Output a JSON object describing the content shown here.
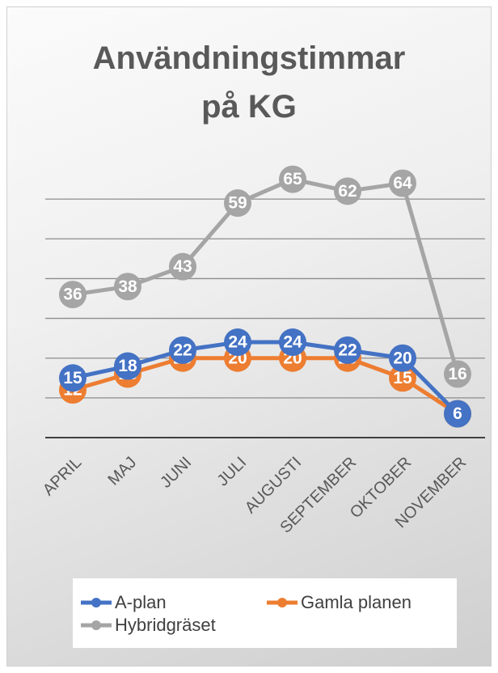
{
  "chart_data": {
    "type": "line",
    "title": "Användningstimmar på KG",
    "categories": [
      "APRIL",
      "MAJ",
      "JUNI",
      "JULI",
      "AUGUSTI",
      "SEPTEMBER",
      "OKTOBER",
      "NOVEMBER"
    ],
    "series": [
      {
        "name": "A-plan",
        "color": "#4472c4",
        "values": [
          15,
          18,
          22,
          24,
          24,
          22,
          20,
          6
        ]
      },
      {
        "name": "Gamla planen",
        "color": "#ed7d31",
        "values": [
          12,
          16,
          20,
          20,
          20,
          20,
          15,
          6
        ]
      },
      {
        "name": "Hybridgräset",
        "color": "#a5a5a5",
        "values": [
          36,
          38,
          43,
          59,
          65,
          62,
          64,
          16
        ]
      }
    ],
    "ylim": [
      0,
      70
    ],
    "yticks": [
      0,
      10,
      20,
      30,
      40,
      50,
      60
    ],
    "grid": true,
    "legend": "bottom"
  }
}
